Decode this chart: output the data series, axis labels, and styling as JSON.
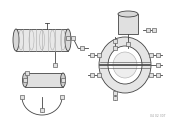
{
  "bg_color": "#f0f0f0",
  "line_color": "#444444",
  "light_color": "#cccccc",
  "dark_color": "#888888",
  "watermark": "04 02 307"
}
